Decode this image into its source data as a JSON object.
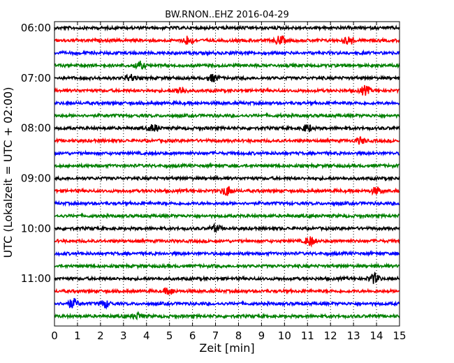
{
  "chart_data": {
    "type": "line",
    "title": "BW.RNON..EHZ 2016-04-29",
    "xlabel": "Zeit  [min]",
    "ylabel": "UTC (Lokalzeit = UTC + 02:00)",
    "xlim": [
      0,
      15
    ],
    "x_ticks": [
      "0",
      "1",
      "2",
      "3",
      "4",
      "5",
      "6",
      "7",
      "8",
      "9",
      "10",
      "11",
      "12",
      "13",
      "14",
      "15"
    ],
    "y_ticks": [
      "06:00",
      "07:00",
      "08:00",
      "09:00",
      "10:00",
      "11:00"
    ],
    "grid": "vertical dotted",
    "trace_interval_min": 15,
    "start_time": "06:00",
    "trace_colors": [
      "#000000",
      "#ff0000",
      "#0000ff",
      "#008000"
    ],
    "trace_count": 24,
    "events": [
      {
        "trace": 1,
        "x": 5.8,
        "amp": 2.0
      },
      {
        "trace": 1,
        "x": 9.8,
        "amp": 2.0
      },
      {
        "trace": 1,
        "x": 12.8,
        "amp": 1.8
      },
      {
        "trace": 3,
        "x": 3.7,
        "amp": 1.6
      },
      {
        "trace": 4,
        "x": 3.3,
        "amp": 1.5
      },
      {
        "trace": 4,
        "x": 6.9,
        "amp": 1.5
      },
      {
        "trace": 5,
        "x": 5.5,
        "amp": 1.8
      },
      {
        "trace": 5,
        "x": 13.5,
        "amp": 2.0
      },
      {
        "trace": 8,
        "x": 4.3,
        "amp": 1.6
      },
      {
        "trace": 8,
        "x": 11.0,
        "amp": 1.6
      },
      {
        "trace": 9,
        "x": 13.3,
        "amp": 1.4
      },
      {
        "trace": 13,
        "x": 7.5,
        "amp": 2.2
      },
      {
        "trace": 13,
        "x": 14.0,
        "amp": 1.6
      },
      {
        "trace": 16,
        "x": 7.0,
        "amp": 1.4
      },
      {
        "trace": 17,
        "x": 11.1,
        "amp": 2.0
      },
      {
        "trace": 20,
        "x": 13.9,
        "amp": 2.2
      },
      {
        "trace": 21,
        "x": 5.0,
        "amp": 1.5
      },
      {
        "trace": 22,
        "x": 0.8,
        "amp": 2.2
      },
      {
        "trace": 22,
        "x": 2.2,
        "amp": 1.6
      },
      {
        "trace": 23,
        "x": 3.6,
        "amp": 1.3
      }
    ]
  }
}
